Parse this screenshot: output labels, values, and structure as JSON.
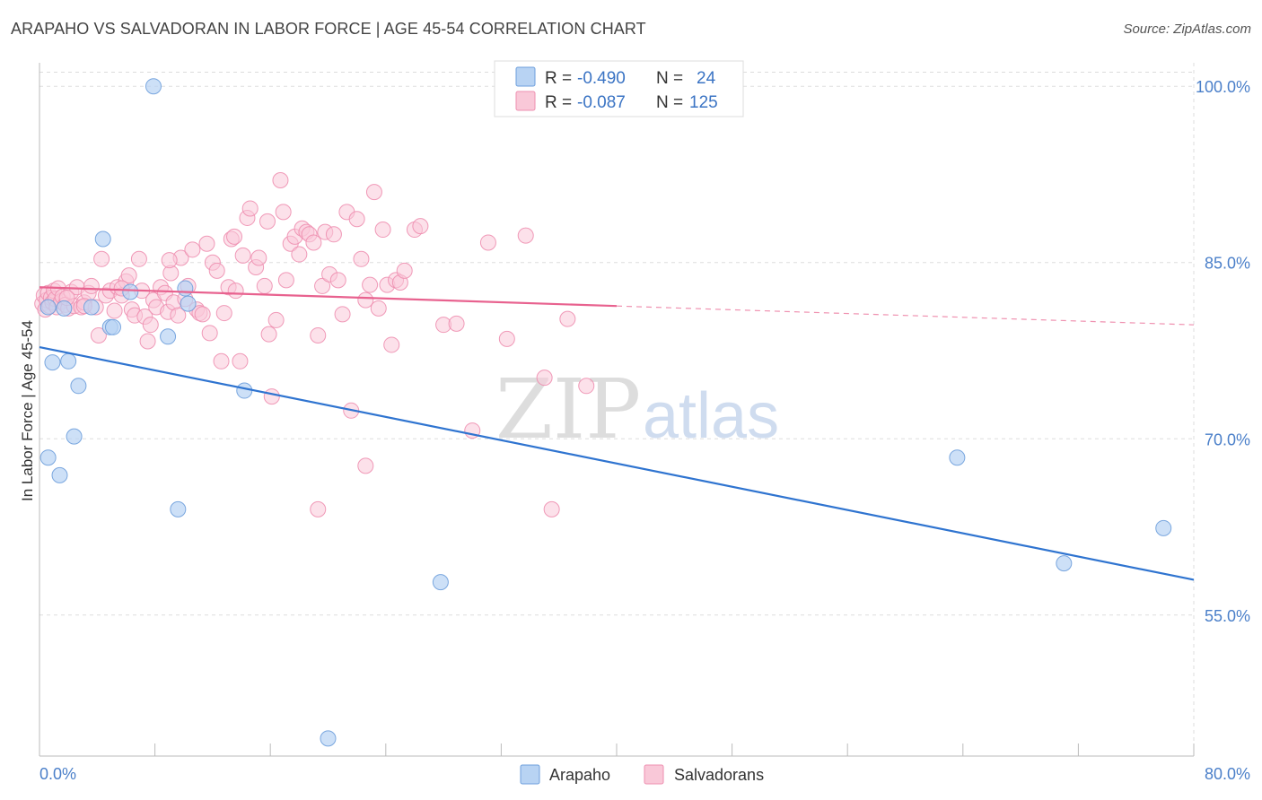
{
  "header": {
    "title": "ARAPAHO VS SALVADORAN IN LABOR FORCE | AGE 45-54 CORRELATION CHART",
    "source": "Source: ZipAtlas.com"
  },
  "legend": {
    "rows": [
      {
        "r_label": "R =",
        "r_value": "-0.490",
        "n_label": "N =",
        "n_value": "24"
      },
      {
        "r_label": "R =",
        "r_value": "-0.087",
        "n_label": "N =",
        "n_value": "125"
      }
    ],
    "bottom": [
      "Arapaho",
      "Salvadorans"
    ]
  },
  "watermark": {
    "zip": "ZIP",
    "atlas": "atlas"
  },
  "colors": {
    "arapaho_fill": "#b8d3f3",
    "arapaho_stroke": "#6e9fdc",
    "arapaho_line": "#2f74d0",
    "salvadoran_fill": "#f9c8d8",
    "salvadoran_stroke": "#ee8fb0",
    "salvadoran_line": "#e8628f",
    "grid": "#dddddd",
    "tick_label": "#4a7fc9"
  },
  "chart_data": {
    "type": "scatter",
    "title": "ARAPAHO VS SALVADORAN IN LABOR FORCE | AGE 45-54 CORRELATION CHART",
    "xlabel": "",
    "ylabel": "In Labor Force | Age 45-54",
    "xlim": [
      0,
      80
    ],
    "ylim": [
      43,
      102
    ],
    "x_tick_labels": [
      "0.0%",
      "80.0%"
    ],
    "y_ticks": [
      55,
      70,
      85,
      100
    ],
    "y_tick_labels": [
      "55.0%",
      "70.0%",
      "85.0%",
      "100.0%"
    ],
    "grid": true,
    "legend_position": "top-center",
    "series": [
      {
        "name": "Arapaho",
        "r": -0.49,
        "n": 24,
        "trend": {
          "x": [
            0,
            80
          ],
          "y": [
            77.8,
            58.0
          ]
        },
        "points": [
          [
            0.6,
            81.2
          ],
          [
            0.9,
            76.5
          ],
          [
            0.6,
            68.4
          ],
          [
            1.4,
            66.9
          ],
          [
            1.7,
            81.1
          ],
          [
            2.0,
            76.6
          ],
          [
            2.4,
            70.2
          ],
          [
            2.7,
            74.5
          ],
          [
            3.6,
            81.2
          ],
          [
            4.4,
            87.0
          ],
          [
            4.9,
            79.5
          ],
          [
            5.1,
            79.5
          ],
          [
            6.3,
            82.5
          ],
          [
            7.9,
            100.0
          ],
          [
            8.9,
            78.7
          ],
          [
            9.6,
            64.0
          ],
          [
            10.1,
            82.8
          ],
          [
            10.3,
            81.5
          ],
          [
            14.2,
            74.1
          ],
          [
            20.0,
            44.5
          ],
          [
            27.8,
            57.8
          ],
          [
            63.6,
            68.4
          ],
          [
            71.0,
            59.4
          ],
          [
            77.9,
            62.4
          ]
        ]
      },
      {
        "name": "Salvadorans",
        "r": -0.087,
        "n": 125,
        "trend": {
          "x": [
            0,
            40
          ],
          "y": [
            82.9,
            81.3
          ]
        },
        "trend_extension": {
          "x": [
            40,
            80
          ],
          "y": [
            81.3,
            79.7
          ]
        },
        "points": [
          [
            0.2,
            81.5
          ],
          [
            0.3,
            82.2
          ],
          [
            0.4,
            81.0
          ],
          [
            0.5,
            81.8
          ],
          [
            0.6,
            82.4
          ],
          [
            0.7,
            81.3
          ],
          [
            0.8,
            82.0
          ],
          [
            0.9,
            81.6
          ],
          [
            1.0,
            82.6
          ],
          [
            1.1,
            81.9
          ],
          [
            1.2,
            81.2
          ],
          [
            1.3,
            82.8
          ],
          [
            1.5,
            81.7
          ],
          [
            1.6,
            82.1
          ],
          [
            1.8,
            81.4
          ],
          [
            2.0,
            81.1
          ],
          [
            2.2,
            82.5
          ],
          [
            2.4,
            81.3
          ],
          [
            2.6,
            82.9
          ],
          [
            2.9,
            81.2
          ],
          [
            3.1,
            81.6
          ],
          [
            3.4,
            82.4
          ],
          [
            3.6,
            83.0
          ],
          [
            3.9,
            81.2
          ],
          [
            4.1,
            78.8
          ],
          [
            4.3,
            85.3
          ],
          [
            4.6,
            82.2
          ],
          [
            4.9,
            82.6
          ],
          [
            5.2,
            80.9
          ],
          [
            5.4,
            82.9
          ],
          [
            5.7,
            82.2
          ],
          [
            6.0,
            83.4
          ],
          [
            6.2,
            83.9
          ],
          [
            6.4,
            81.0
          ],
          [
            6.6,
            80.5
          ],
          [
            6.9,
            85.3
          ],
          [
            7.1,
            82.6
          ],
          [
            7.3,
            80.4
          ],
          [
            7.5,
            78.3
          ],
          [
            7.7,
            79.7
          ],
          [
            7.9,
            81.8
          ],
          [
            8.1,
            81.2
          ],
          [
            8.4,
            82.9
          ],
          [
            8.7,
            82.4
          ],
          [
            8.9,
            80.8
          ],
          [
            9.1,
            84.1
          ],
          [
            9.3,
            81.6
          ],
          [
            9.6,
            80.5
          ],
          [
            9.8,
            85.4
          ],
          [
            10.1,
            81.9
          ],
          [
            10.3,
            83.0
          ],
          [
            10.6,
            86.1
          ],
          [
            10.9,
            81.0
          ],
          [
            11.1,
            80.7
          ],
          [
            11.3,
            80.6
          ],
          [
            11.6,
            86.6
          ],
          [
            11.8,
            79.0
          ],
          [
            12.0,
            85.0
          ],
          [
            12.3,
            84.3
          ],
          [
            12.6,
            76.6
          ],
          [
            12.8,
            80.7
          ],
          [
            13.1,
            82.9
          ],
          [
            13.3,
            87.0
          ],
          [
            13.6,
            82.6
          ],
          [
            13.9,
            76.6
          ],
          [
            14.1,
            85.6
          ],
          [
            14.4,
            88.8
          ],
          [
            14.6,
            89.6
          ],
          [
            15.0,
            84.6
          ],
          [
            15.2,
            85.4
          ],
          [
            15.6,
            83.0
          ],
          [
            15.9,
            78.9
          ],
          [
            16.1,
            73.6
          ],
          [
            16.4,
            80.1
          ],
          [
            16.7,
            92.0
          ],
          [
            16.9,
            89.3
          ],
          [
            17.1,
            83.5
          ],
          [
            17.4,
            86.6
          ],
          [
            17.7,
            87.2
          ],
          [
            18.0,
            85.7
          ],
          [
            18.2,
            87.9
          ],
          [
            18.5,
            87.6
          ],
          [
            18.7,
            87.4
          ],
          [
            19.0,
            86.7
          ],
          [
            19.3,
            78.8
          ],
          [
            19.6,
            83.0
          ],
          [
            19.8,
            87.6
          ],
          [
            20.1,
            84.0
          ],
          [
            20.4,
            87.4
          ],
          [
            20.7,
            83.5
          ],
          [
            21.0,
            80.6
          ],
          [
            21.3,
            89.3
          ],
          [
            21.6,
            72.4
          ],
          [
            22.0,
            88.7
          ],
          [
            22.3,
            85.3
          ],
          [
            22.6,
            81.8
          ],
          [
            22.9,
            83.1
          ],
          [
            23.2,
            91.0
          ],
          [
            23.5,
            81.1
          ],
          [
            23.8,
            87.8
          ],
          [
            24.1,
            83.1
          ],
          [
            24.4,
            78.0
          ],
          [
            24.7,
            83.5
          ],
          [
            25.0,
            83.3
          ],
          [
            25.3,
            84.3
          ],
          [
            26.0,
            87.8
          ],
          [
            26.4,
            88.1
          ],
          [
            28.0,
            79.7
          ],
          [
            28.9,
            79.8
          ],
          [
            30.0,
            70.7
          ],
          [
            31.1,
            86.7
          ],
          [
            32.4,
            78.5
          ],
          [
            33.7,
            87.3
          ],
          [
            35.0,
            75.2
          ],
          [
            35.5,
            64.0
          ],
          [
            36.6,
            80.2
          ],
          [
            37.9,
            74.5
          ],
          [
            15.8,
            88.5
          ],
          [
            19.3,
            64.0
          ],
          [
            22.6,
            67.7
          ],
          [
            13.5,
            87.2
          ],
          [
            9.0,
            85.2
          ],
          [
            5.7,
            82.8
          ],
          [
            3.1,
            81.3
          ],
          [
            1.9,
            82.0
          ]
        ]
      }
    ]
  }
}
